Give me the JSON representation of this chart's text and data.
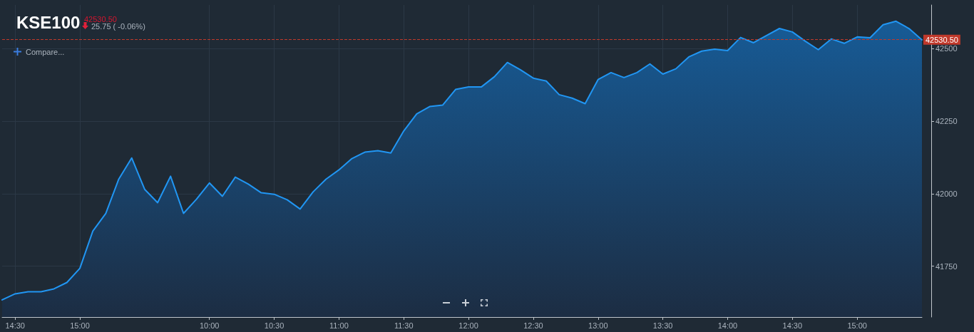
{
  "chart_data": {
    "type": "area",
    "title": "KSE100",
    "subtitle": "42530.50",
    "annotations": [
      "25.75 ( -0.06%)",
      "Compare..."
    ],
    "categories": [
      null,
      "14:30",
      null,
      null,
      null,
      null,
      "15:00",
      null,
      null,
      null,
      null,
      null,
      null,
      null,
      null,
      null,
      "10:00",
      null,
      null,
      null,
      null,
      "10:30",
      null,
      null,
      null,
      null,
      "11:00",
      null,
      null,
      null,
      null,
      "11:30",
      null,
      null,
      null,
      null,
      "12:00",
      null,
      null,
      null,
      null,
      "12:30",
      null,
      null,
      null,
      null,
      "13:00",
      null,
      null,
      null,
      null,
      "13:30",
      null,
      null,
      null,
      null,
      "14:00",
      null,
      null,
      null,
      null,
      "14:30",
      null,
      null,
      null,
      null,
      "15:00",
      null,
      null,
      null,
      null,
      null
    ],
    "series": [
      {
        "color": "#2196f3",
        "values": [
          41634,
          41655,
          41662,
          41662,
          41672,
          41694,
          41743,
          41871,
          41932,
          42050,
          42123,
          42015,
          41969,
          42060,
          41932,
          41981,
          42037,
          41991,
          42057,
          42033,
          42003,
          41998,
          41979,
          41947,
          42006,
          42050,
          42082,
          42121,
          42143,
          42148,
          42140,
          42216,
          42275,
          42300,
          42305,
          42359,
          42368,
          42368,
          42403,
          42452,
          42427,
          42398,
          42388,
          42341,
          42329,
          42310,
          42393,
          42417,
          42400,
          42417,
          42447,
          42412,
          42430,
          42471,
          42491,
          42498,
          42493,
          42538,
          42520,
          42545,
          42569,
          42557,
          42525,
          42496,
          42533,
          42518,
          42540,
          42537,
          42582,
          42594,
          42569,
          42530
        ]
      }
    ],
    "ylim": [
      41575,
      42650
    ],
    "yticks": [
      41750,
      42000,
      42250,
      42500
    ],
    "ref_lines": [
      {
        "axis": "y",
        "value": 42530.5,
        "label": "42530.50",
        "color": "#c0392b",
        "line_style": "dashed"
      }
    ],
    "grid": true,
    "marker": "none",
    "line_style": "solid"
  }
}
